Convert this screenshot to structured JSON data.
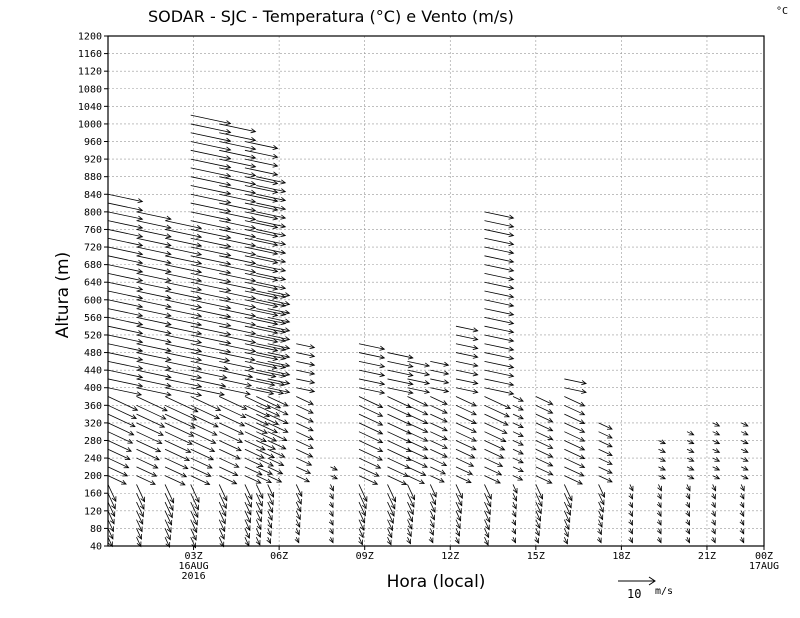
{
  "chart_data": {
    "type": "vector-field",
    "title": "SODAR - SJC - Temperatura (°C) e Vento (m/s)",
    "corner_unit": "°C",
    "xlabel": "Hora (local)",
    "ylabel": "Altura (m)",
    "ylim": [
      40,
      1200
    ],
    "yticks": [
      40,
      80,
      120,
      160,
      200,
      240,
      280,
      320,
      360,
      400,
      440,
      480,
      520,
      560,
      600,
      640,
      680,
      720,
      760,
      800,
      840,
      880,
      920,
      960,
      1000,
      1040,
      1080,
      1120,
      1160,
      1200
    ],
    "xlim_hours": [
      0,
      23
    ],
    "xticks": [
      {
        "hour": 3,
        "label": "03Z",
        "sub1": "16AUG",
        "sub2": "2016"
      },
      {
        "hour": 6,
        "label": "06Z"
      },
      {
        "hour": 9,
        "label": "09Z"
      },
      {
        "hour": 12,
        "label": "12Z"
      },
      {
        "hour": 15,
        "label": "15Z"
      },
      {
        "hour": 18,
        "label": "18Z"
      },
      {
        "hour": 21,
        "label": "21Z"
      },
      {
        "hour": 23,
        "label": "00Z",
        "sub1": "17AUG"
      }
    ],
    "grid": true,
    "reference_vector": {
      "speed": 10,
      "label": "10",
      "unit": "m/s"
    },
    "wind_columns": [
      {
        "hour": 0.0,
        "max_height": 840,
        "speed": 9.5
      },
      {
        "hour": 1.0,
        "max_height": 800,
        "speed": 9.5
      },
      {
        "hour": 2.0,
        "max_height": 780,
        "speed": 10
      },
      {
        "hour": 2.9,
        "max_height": 1020,
        "speed": 11
      },
      {
        "hour": 3.9,
        "max_height": 1000,
        "speed": 10
      },
      {
        "hour": 4.8,
        "max_height": 960,
        "speed": 9
      },
      {
        "hour": 5.2,
        "max_height": 880,
        "speed": 8
      },
      {
        "hour": 5.6,
        "max_height": 620,
        "speed": 6
      },
      {
        "hour": 6.6,
        "max_height": 510,
        "speed": 5
      },
      {
        "hour": 7.8,
        "max_height": 220,
        "speed": 2
      },
      {
        "hour": 8.8,
        "max_height": 500,
        "speed": 7
      },
      {
        "hour": 9.8,
        "max_height": 480,
        "speed": 7
      },
      {
        "hour": 10.5,
        "max_height": 460,
        "speed": 6
      },
      {
        "hour": 11.3,
        "max_height": 470,
        "speed": 5
      },
      {
        "hour": 12.2,
        "max_height": 540,
        "speed": 6
      },
      {
        "hour": 13.2,
        "max_height": 800,
        "speed": 8
      },
      {
        "hour": 14.2,
        "max_height": 390,
        "speed": 3
      },
      {
        "hour": 15.0,
        "max_height": 380,
        "speed": 5
      },
      {
        "hour": 16.0,
        "max_height": 420,
        "speed": 6
      },
      {
        "hour": 17.2,
        "max_height": 320,
        "speed": 4
      },
      {
        "hour": 18.3,
        "max_height": 180,
        "speed": 2
      },
      {
        "hour": 19.3,
        "max_height": 290,
        "speed": 2
      },
      {
        "hour": 20.3,
        "max_height": 300,
        "speed": 2
      },
      {
        "hour": 21.2,
        "max_height": 320,
        "speed": 2
      },
      {
        "hour": 22.2,
        "max_height": 320,
        "speed": 2
      }
    ]
  }
}
